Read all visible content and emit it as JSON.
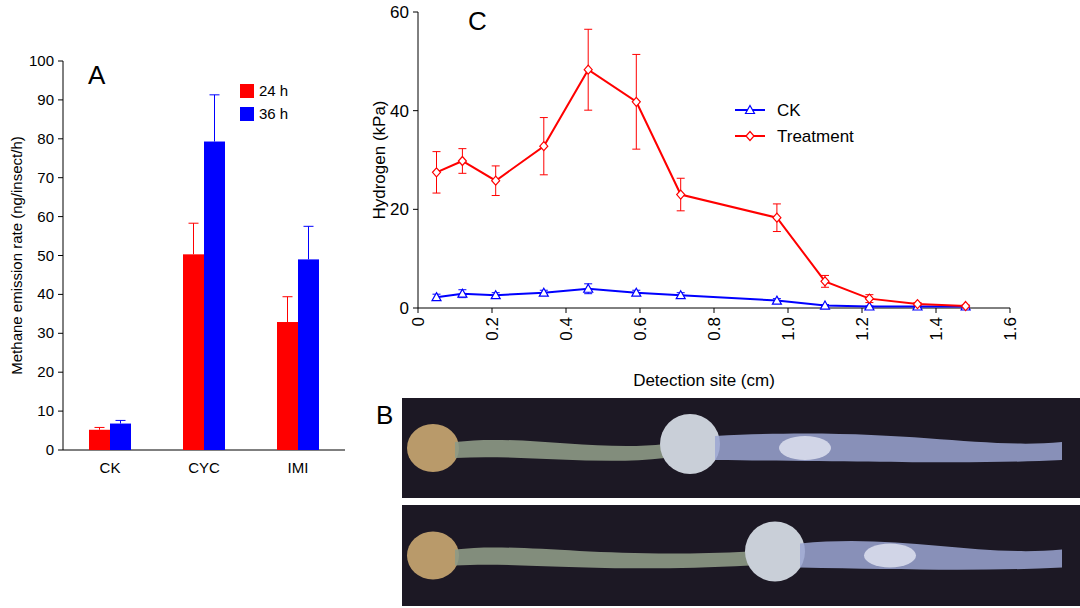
{
  "chart_data": [
    {
      "type": "bar",
      "title": "A",
      "y_label": "Methane emission rate (ng/insect/h)",
      "categories": [
        "CK",
        "CYC",
        "IMI"
      ],
      "series": [
        {
          "name": "24 h",
          "color": "#ff0000",
          "values": [
            5.2,
            50.3,
            32.9
          ],
          "errors": [
            0.6,
            8,
            6.5
          ]
        },
        {
          "name": "36 h",
          "color": "#0000ff",
          "values": [
            6.8,
            79.3,
            49
          ],
          "errors": [
            0.8,
            12,
            8.5
          ]
        }
      ],
      "ylim": [
        0,
        100
      ],
      "yticks": [
        0,
        10,
        20,
        30,
        40,
        50,
        60,
        70,
        80,
        90,
        100
      ],
      "legend": "upper right",
      "grid": false
    },
    {
      "type": "line",
      "title": "C",
      "x_label": "Detection site (cm)",
      "y_label": "Hydrogen (kPa)",
      "x": [
        0.05,
        0.12,
        0.21,
        0.34,
        0.46,
        0.59,
        0.71,
        0.97,
        1.1,
        1.22,
        1.35,
        1.48
      ],
      "series": [
        {
          "name": "CK",
          "color": "#0000ff",
          "marker": "triangle",
          "values": [
            2.2,
            2.9,
            2.6,
            3.1,
            3.9,
            3.1,
            2.6,
            1.5,
            0.5,
            0.3,
            0.3,
            0.3
          ],
          "errors": [
            0.6,
            0.8,
            0.5,
            0.5,
            1,
            0.5,
            0.5,
            0.4,
            0.2,
            0.1,
            0.1,
            0.1
          ]
        },
        {
          "name": "Treatment",
          "color": "#ff0000",
          "marker": "diamond",
          "values": [
            27.5,
            29.8,
            25.8,
            32.8,
            48.3,
            41.8,
            23,
            18.3,
            5.4,
            1.9,
            0.8,
            0.4
          ],
          "errors": [
            4.2,
            2.5,
            3,
            5.8,
            8.2,
            9.6,
            3.3,
            2.8,
            1.2,
            0.8,
            0.3,
            0.2
          ]
        }
      ],
      "xlim": [
        0,
        1.6
      ],
      "xticks": [
        0,
        0.2,
        0.4,
        0.6,
        0.8,
        {
          "value": 1,
          "label": "1.0"
        },
        1.2,
        1.4,
        1.6
      ],
      "ylim": [
        0,
        60
      ],
      "yticks": [
        0,
        20,
        40,
        60
      ],
      "legend": "upper right",
      "grid": false
    }
  ],
  "image_panel": {
    "label": "B"
  }
}
